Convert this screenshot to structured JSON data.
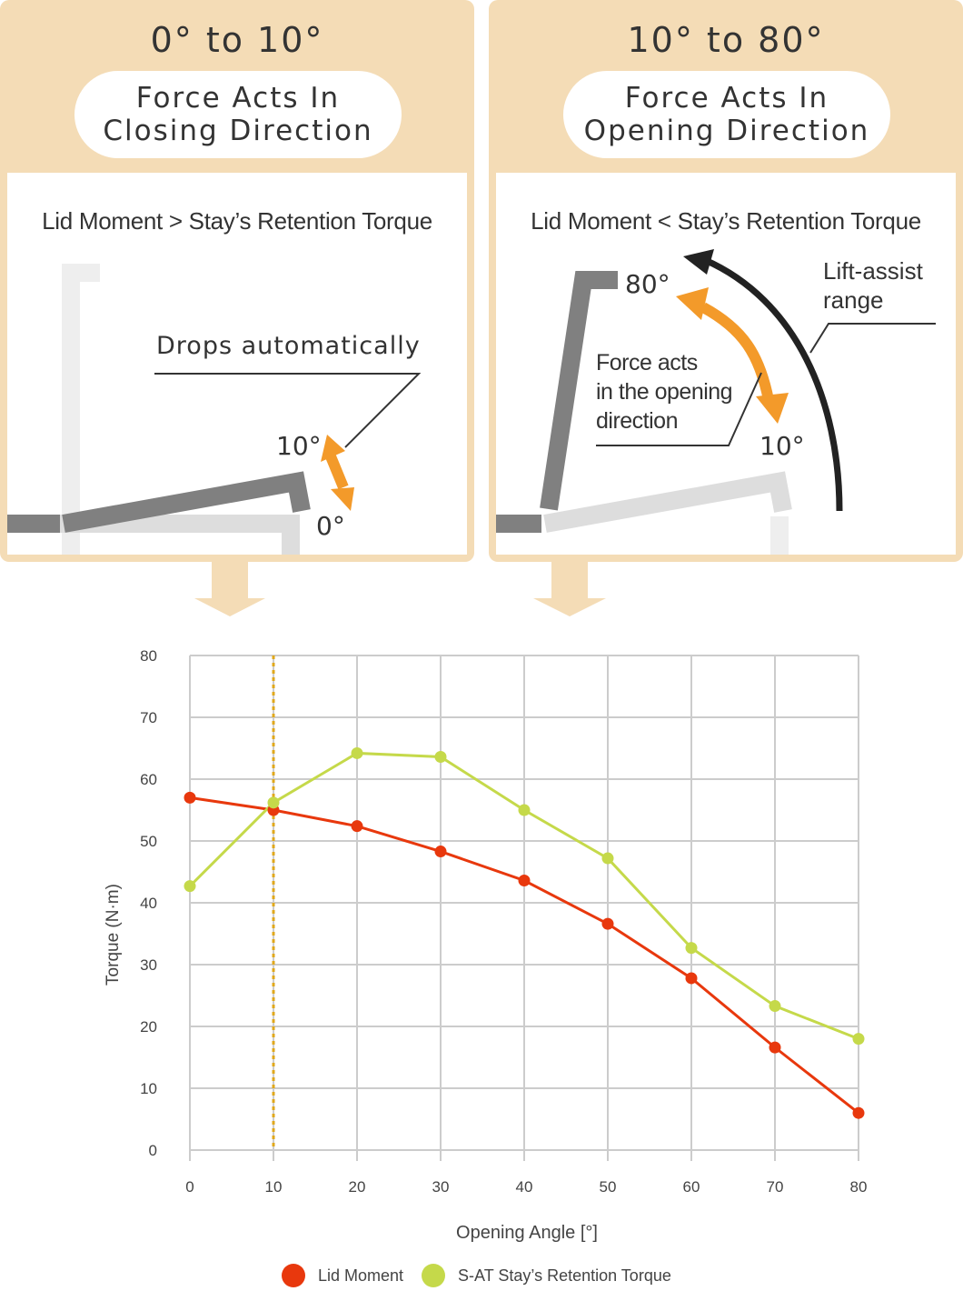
{
  "left_panel": {
    "range": "0° to 10°",
    "pill_line1": "Force Acts In",
    "pill_line2": "Closing Direction",
    "subtitle": "Lid Moment > Stay’s Retention Torque",
    "callout": "Drops automatically",
    "angle_top": "10°",
    "angle_bottom": "0°"
  },
  "right_panel": {
    "range": "10° to 80°",
    "pill_line1": "Force Acts In",
    "pill_line2": "Opening Direction",
    "subtitle": "Lid Moment < Stay’s Retention Torque",
    "callout_line1": "Force acts",
    "callout_line2": "in the opening",
    "callout_line3": "direction",
    "assist_line1": "Lift-assist",
    "assist_line2": "range",
    "angle_top": "80°",
    "angle_bottom": "10°"
  },
  "colors": {
    "panel_bg": "#f4dcb6",
    "arrow_orange": "#f39a2a",
    "lid_moment": "#e8380d",
    "retention": "#c5d94a",
    "dashed_line": "#e0a81c"
  },
  "chart_data": {
    "type": "line",
    "xlabel": "Opening Angle [°]",
    "ylabel": "Torque (N·m)",
    "x": [
      0,
      10,
      20,
      30,
      40,
      50,
      60,
      70,
      80
    ],
    "xlim": [
      0,
      80
    ],
    "ylim": [
      0,
      80
    ],
    "xticks": [
      0,
      10,
      20,
      30,
      40,
      50,
      60,
      70,
      80
    ],
    "yticks": [
      0,
      10,
      20,
      30,
      40,
      50,
      60,
      70,
      80
    ],
    "grid": true,
    "reference_line_x": 10,
    "legend_position": "bottom",
    "series": [
      {
        "name": "Lid Moment",
        "color": "#e8380d",
        "values": [
          57,
          55,
          52.4,
          48.3,
          43.6,
          36.6,
          27.8,
          16.6,
          6
        ]
      },
      {
        "name": "S-AT Stay’s Retention Torque",
        "color": "#c5d94a",
        "values": [
          42.7,
          56.2,
          64.2,
          63.6,
          55,
          47.2,
          32.7,
          23.3,
          18
        ]
      }
    ]
  }
}
